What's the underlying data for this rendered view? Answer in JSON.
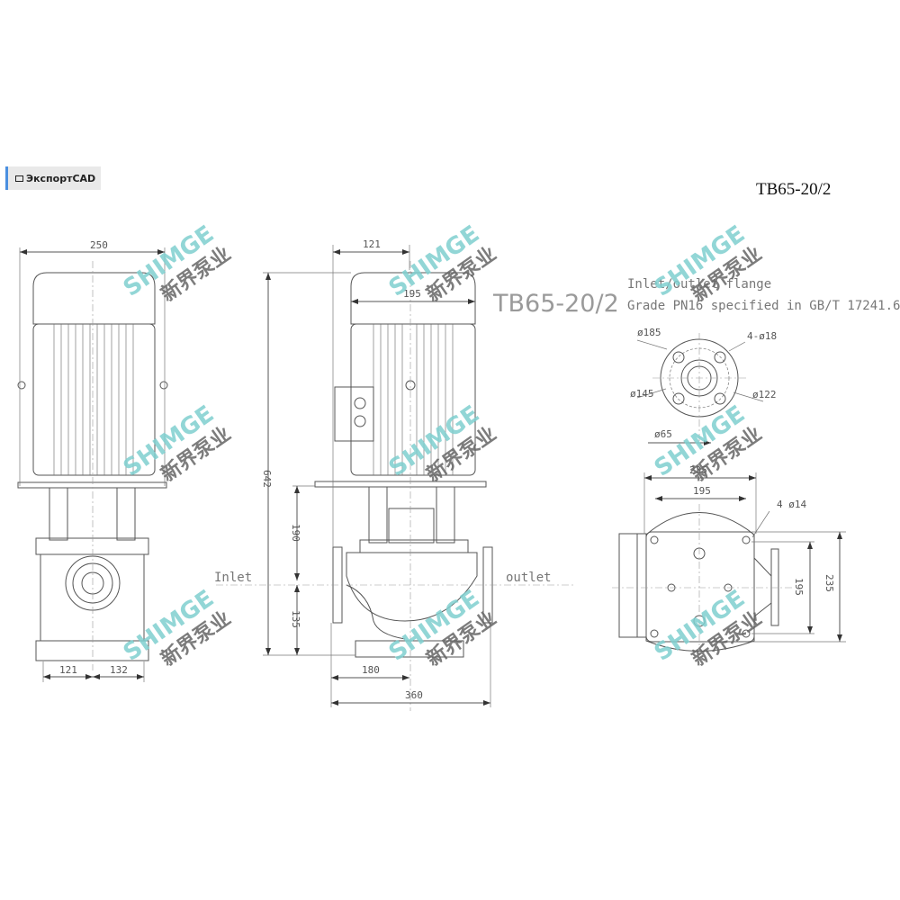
{
  "toolbar": {
    "export_label": "ЭкспортCAD",
    "export_icon": "image-icon"
  },
  "drawing": {
    "model_title": "TB65-20/2",
    "model_label_large": "TB65-20/2",
    "flange_note_line1": "Inlet/outlet flange",
    "flange_note_line2": "Grade PN16 specified in GB/T 17241.6",
    "inlet_label": "Inlet",
    "outlet_label": "outlet",
    "side_view": {
      "width_250": "250",
      "dim_121": "121",
      "dim_132": "132"
    },
    "front_view": {
      "dim_121": "121",
      "dim_195": "195",
      "height_642": "642",
      "dim_190": "190",
      "dim_135": "135",
      "dim_180": "180",
      "dim_360": "360"
    },
    "flange_view": {
      "d185": "ø185",
      "holes": "4-ø18",
      "d145": "ø145",
      "d122": "ø122",
      "d65": "ø65"
    },
    "base_view": {
      "w235": "235",
      "w195": "195",
      "holes": "4 ø14",
      "h195": "195",
      "h235": "235"
    },
    "watermark": {
      "latin": "SHIMGE",
      "chinese": "新界泵业",
      "color": "#7fd0d0"
    }
  }
}
